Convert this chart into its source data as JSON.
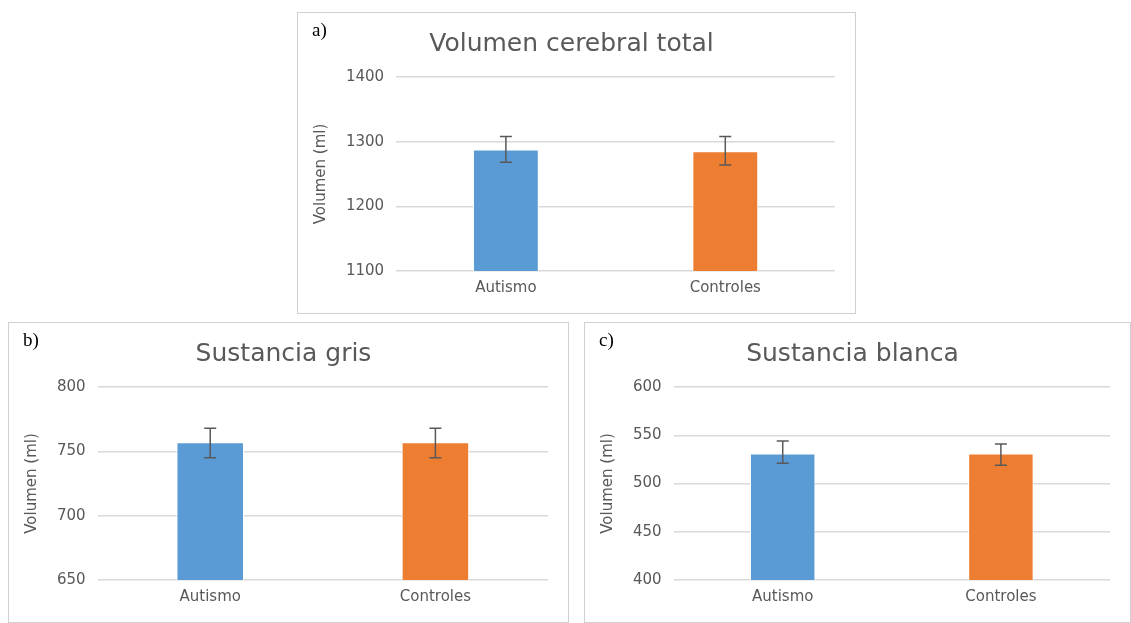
{
  "chart_data": [
    {
      "type": "bar",
      "title": "Volumen cerebral total",
      "ylabel": "Volumen (ml)",
      "annotations": [
        "a)"
      ],
      "categories": [
        "Autismo",
        "Controles"
      ],
      "values": [
        1288,
        1285
      ],
      "colors": [
        "#5b9bd5",
        "#ed7d31"
      ],
      "errors": [
        [
          1268,
          1308
        ],
        [
          1264,
          1308
        ]
      ],
      "ylim": [
        1100,
        1400
      ],
      "yticks": [
        1100,
        1200,
        1300,
        1400
      ],
      "grid": "y"
    },
    {
      "type": "bar",
      "title": "Sustancia gris",
      "ylabel": "Volumen (ml)",
      "annotations": [
        "b)"
      ],
      "categories": [
        "Autismo",
        "Controles"
      ],
      "values": [
        757,
        757
      ],
      "colors": [
        "#5b9bd5",
        "#ed7d31"
      ],
      "errors": [
        [
          745,
          768
        ],
        [
          745,
          768
        ]
      ],
      "ylim": [
        650,
        800
      ],
      "yticks": [
        650,
        700,
        750,
        800
      ],
      "grid": "y"
    },
    {
      "type": "bar",
      "title": "Sustancia blanca",
      "ylabel": "Volumen (ml)",
      "annotations": [
        "c)"
      ],
      "categories": [
        "Autismo",
        "Controles"
      ],
      "values": [
        531,
        531
      ],
      "colors": [
        "#5b9bd5",
        "#ed7d31"
      ],
      "errors": [
        [
          521,
          544
        ],
        [
          519,
          541
        ]
      ],
      "ylim": [
        400,
        600
      ],
      "yticks": [
        400,
        450,
        500,
        550,
        600
      ],
      "grid": "y"
    }
  ]
}
